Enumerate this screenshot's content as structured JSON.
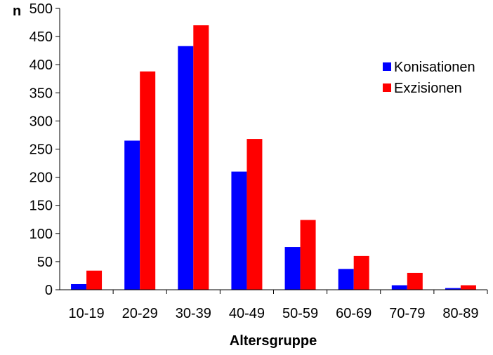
{
  "chart_data": {
    "type": "bar",
    "title": "",
    "xlabel": "Altersgruppe",
    "ylabel": "n",
    "ylim": [
      0,
      500
    ],
    "yticks": [
      0,
      50,
      100,
      150,
      200,
      250,
      300,
      350,
      400,
      450,
      500
    ],
    "categories": [
      "10-19",
      "20-29",
      "30-39",
      "40-49",
      "50-59",
      "60-69",
      "70-79",
      "80-89"
    ],
    "series": [
      {
        "name": "Konisationen",
        "color": "#0000ff",
        "values": [
          10,
          265,
          433,
          210,
          76,
          37,
          8,
          3
        ]
      },
      {
        "name": "Exzisionen",
        "color": "#ff0000",
        "values": [
          34,
          388,
          470,
          268,
          124,
          60,
          30,
          8
        ]
      }
    ],
    "legend_position": "right",
    "grid": false
  }
}
